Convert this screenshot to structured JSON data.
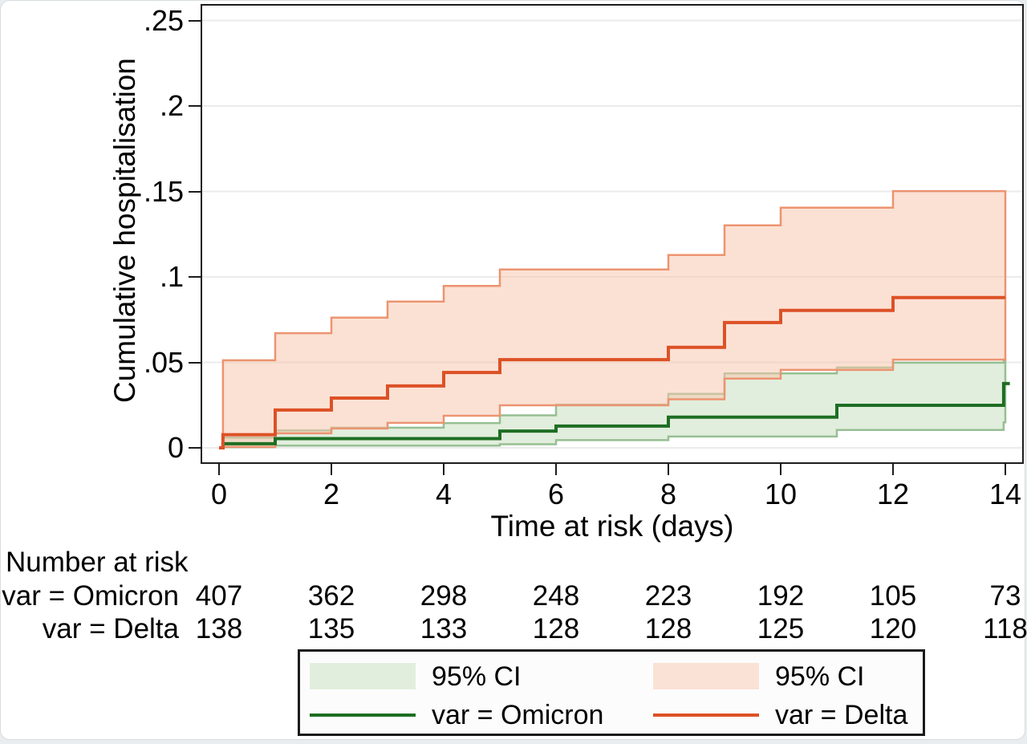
{
  "chart_data": {
    "type": "line",
    "subtype": "kaplan-meier-cumulative-incidence-step",
    "title": "",
    "xlabel": "Time at risk (days)",
    "ylabel": "Cumulative hospitalisation",
    "xlim": [
      0,
      14
    ],
    "ylim": [
      0,
      0.25
    ],
    "grid": "horizontal",
    "x_ticks": [
      0,
      2,
      4,
      6,
      8,
      10,
      12,
      14
    ],
    "y_ticks": [
      {
        "v": 0,
        "label": "0"
      },
      {
        "v": 0.05,
        "label": ".05"
      },
      {
        "v": 0.1,
        "label": ".1"
      },
      {
        "v": 0.15,
        "label": ".15"
      },
      {
        "v": 0.2,
        "label": ".2"
      },
      {
        "v": 0.25,
        "label": ".25"
      }
    ],
    "series": [
      {
        "key": "omicron",
        "name": "var = Omicron",
        "color": "#1e6e23",
        "fill": "#e2eedd",
        "fill_opacity": 1,
        "edge": "#96bf92",
        "end": 14.08,
        "steps": [
          [
            0,
            0
          ],
          [
            0.07,
            0.0024
          ],
          [
            1,
            0.0054
          ],
          [
            5,
            0.0098
          ],
          [
            6,
            0.0127
          ],
          [
            8,
            0.018
          ],
          [
            11,
            0.0249
          ],
          [
            13.97,
            0.0376
          ]
        ],
        "ci_upper": [
          [
            0.07,
            0.006
          ],
          [
            1,
            0.0102
          ],
          [
            2,
            0.0118
          ],
          [
            4,
            0.0145
          ],
          [
            5,
            0.019
          ],
          [
            6,
            0.0253
          ],
          [
            8,
            0.0316
          ],
          [
            9,
            0.0435
          ],
          [
            11,
            0.047
          ],
          [
            12,
            0.0498
          ],
          [
            13.97,
            0.0517
          ]
        ],
        "ci_lower": [
          [
            0.07,
            0.0004
          ],
          [
            1,
            0.0013
          ],
          [
            5,
            0.0021
          ],
          [
            6,
            0.0045
          ],
          [
            8,
            0.0066
          ],
          [
            11,
            0.0104
          ],
          [
            13.97,
            0.0149
          ]
        ]
      },
      {
        "key": "delta",
        "name": "var = Delta",
        "color": "#dd5126",
        "fill": "#f7c5ad",
        "fill_opacity": 0.52,
        "edge": "#ec9471",
        "end": 14,
        "steps": [
          [
            0,
            0
          ],
          [
            0.07,
            0.0077
          ],
          [
            1,
            0.0221
          ],
          [
            2,
            0.0291
          ],
          [
            3,
            0.0362
          ],
          [
            4,
            0.0441
          ],
          [
            5,
            0.0516
          ],
          [
            8,
            0.0588
          ],
          [
            9,
            0.0733
          ],
          [
            10,
            0.0804
          ],
          [
            12,
            0.0879
          ]
        ],
        "ci_upper": [
          [
            0.07,
            0.0512
          ],
          [
            1,
            0.0671
          ],
          [
            2,
            0.0762
          ],
          [
            3,
            0.0856
          ],
          [
            4,
            0.0947
          ],
          [
            5,
            0.1043
          ],
          [
            8,
            0.1128
          ],
          [
            9,
            0.1302
          ],
          [
            10,
            0.1405
          ],
          [
            12,
            0.1502
          ]
        ],
        "ci_lower": [
          [
            0.07,
            0.0005
          ],
          [
            1,
            0.0085
          ],
          [
            2,
            0.0113
          ],
          [
            3,
            0.0146
          ],
          [
            4,
            0.0188
          ],
          [
            5,
            0.0249
          ],
          [
            8,
            0.0284
          ],
          [
            9,
            0.0405
          ],
          [
            10,
            0.0456
          ],
          [
            12,
            0.0516
          ]
        ]
      }
    ],
    "risk_table": {
      "title": "Number at risk",
      "times": [
        0,
        2,
        4,
        6,
        8,
        10,
        12,
        14
      ],
      "rows": [
        {
          "label": "var = Omicron",
          "values": [
            407,
            362,
            298,
            248,
            223,
            192,
            105,
            73
          ]
        },
        {
          "label": "var = Delta",
          "values": [
            138,
            135,
            133,
            128,
            128,
            125,
            120,
            118
          ]
        }
      ]
    },
    "legend": {
      "items": [
        {
          "type": "area",
          "label": "95% CI",
          "color": "#e2eedd"
        },
        {
          "type": "area",
          "label": "95% CI",
          "color": "#fbe2d6"
        },
        {
          "type": "line",
          "label": "var = Omicron",
          "color": "#1e6e23"
        },
        {
          "type": "line",
          "label": "var = Delta",
          "color": "#dd5126"
        }
      ]
    },
    "colors": {
      "frame": "#1c1c1c",
      "gridline": "#ebebeb",
      "text": "#000000"
    }
  }
}
